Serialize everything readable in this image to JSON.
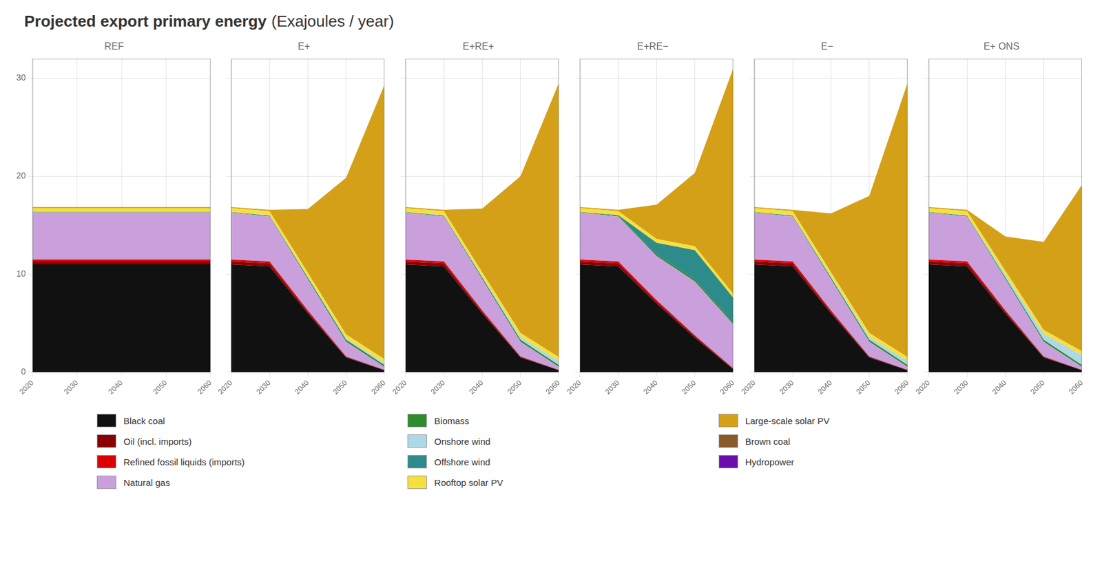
{
  "title": "Projected export primary energy",
  "subtitle": "(Exajoules / year)",
  "legend": "bottom",
  "chart_data": [
    {
      "type": "area",
      "title": "REF",
      "stacked": true,
      "grid": true,
      "x": [
        2020,
        2030,
        2040,
        2050,
        2060
      ],
      "xlim": [
        2020,
        2060
      ],
      "xticks": [
        2020,
        2030,
        2040,
        2050,
        2060
      ],
      "ylim": [
        0,
        32
      ],
      "yticks": [
        0,
        10,
        20,
        30
      ],
      "series": [
        {
          "name": "Black coal",
          "color": "#111111",
          "values": [
            11.0,
            11.0,
            11.0,
            11.0,
            11.0
          ]
        },
        {
          "name": "Oil (incl. imports)",
          "color": "#8B0000",
          "values": [
            0.3,
            0.3,
            0.3,
            0.3,
            0.3
          ]
        },
        {
          "name": "Refined fossil liquids (imports)",
          "color": "#DD0000",
          "values": [
            0.2,
            0.2,
            0.2,
            0.2,
            0.2
          ]
        },
        {
          "name": "Natural gas",
          "color": "#C9A0DC",
          "values": [
            4.8,
            4.8,
            4.8,
            4.8,
            4.8
          ]
        },
        {
          "name": "Biomass",
          "color": "#2E8B2E",
          "values": [
            0.05,
            0.05,
            0.05,
            0.05,
            0.05
          ]
        },
        {
          "name": "Onshore wind",
          "color": "#ADD8E6",
          "values": [
            0.0,
            0.0,
            0.0,
            0.0,
            0.0
          ]
        },
        {
          "name": "Offshore wind",
          "color": "#2E8B8B",
          "values": [
            0.0,
            0.0,
            0.0,
            0.0,
            0.0
          ]
        },
        {
          "name": "Rooftop solar PV",
          "color": "#F5E040",
          "values": [
            0.4,
            0.4,
            0.4,
            0.4,
            0.4
          ]
        },
        {
          "name": "Large-scale solar PV",
          "color": "#D4A017",
          "values": [
            0.1,
            0.1,
            0.1,
            0.1,
            0.1
          ]
        },
        {
          "name": "Brown coal",
          "color": "#8B5A2B",
          "values": [
            0.0,
            0.0,
            0.0,
            0.0,
            0.0
          ]
        },
        {
          "name": "Hydropower",
          "color": "#6A0DAD",
          "values": [
            0.0,
            0.0,
            0.0,
            0.0,
            0.0
          ]
        }
      ]
    },
    {
      "type": "area",
      "title": "E+",
      "stacked": true,
      "grid": true,
      "tick_labels": "x",
      "x": [
        2020,
        2030,
        2040,
        2050,
        2060
      ],
      "xlim": [
        2020,
        2060
      ],
      "xticks": [
        2020,
        2030,
        2040,
        2050,
        2060
      ],
      "ylim": [
        0,
        32
      ],
      "yticks": [
        0,
        10,
        20,
        30
      ],
      "series": [
        {
          "name": "Black coal",
          "color": "#111111",
          "values": [
            11.0,
            10.8,
            6.0,
            1.5,
            0.2
          ]
        },
        {
          "name": "Oil (incl. imports)",
          "color": "#8B0000",
          "values": [
            0.3,
            0.3,
            0.15,
            0.05,
            0.02
          ]
        },
        {
          "name": "Refined fossil liquids (imports)",
          "color": "#DD0000",
          "values": [
            0.2,
            0.2,
            0.15,
            0.05,
            0.01
          ]
        },
        {
          "name": "Natural gas",
          "color": "#C9A0DC",
          "values": [
            4.8,
            4.6,
            3.2,
            1.5,
            0.3
          ]
        },
        {
          "name": "Biomass",
          "color": "#2E8B2E",
          "values": [
            0.05,
            0.08,
            0.15,
            0.2,
            0.2
          ]
        },
        {
          "name": "Onshore wind",
          "color": "#ADD8E6",
          "values": [
            0.0,
            0.05,
            0.1,
            0.15,
            0.2
          ]
        },
        {
          "name": "Offshore wind",
          "color": "#2E8B8B",
          "values": [
            0.0,
            0.0,
            0.0,
            0.0,
            0.0
          ]
        },
        {
          "name": "Rooftop solar PV",
          "color": "#F5E040",
          "values": [
            0.4,
            0.4,
            0.4,
            0.4,
            0.4
          ]
        },
        {
          "name": "Large-scale solar PV",
          "color": "#D4A017",
          "values": [
            0.1,
            0.15,
            6.5,
            16.0,
            28.0
          ]
        },
        {
          "name": "Brown coal",
          "color": "#8B5A2B",
          "values": [
            0.0,
            0.0,
            0.0,
            0.0,
            0.0
          ]
        },
        {
          "name": "Hydropower",
          "color": "#6A0DAD",
          "values": [
            0.0,
            0.0,
            0.0,
            0.0,
            0.0
          ]
        }
      ]
    },
    {
      "type": "area",
      "title": "E+RE+",
      "stacked": true,
      "grid": true,
      "tick_labels": "x",
      "x": [
        2020,
        2030,
        2040,
        2050,
        2060
      ],
      "xlim": [
        2020,
        2060
      ],
      "xticks": [
        2020,
        2030,
        2040,
        2050,
        2060
      ],
      "ylim": [
        0,
        32
      ],
      "yticks": [
        0,
        10,
        20,
        30
      ],
      "series": [
        {
          "name": "Black coal",
          "color": "#111111",
          "values": [
            11.0,
            10.8,
            6.0,
            1.5,
            0.2
          ]
        },
        {
          "name": "Oil (incl. imports)",
          "color": "#8B0000",
          "values": [
            0.3,
            0.3,
            0.15,
            0.05,
            0.02
          ]
        },
        {
          "name": "Refined fossil liquids (imports)",
          "color": "#DD0000",
          "values": [
            0.2,
            0.2,
            0.15,
            0.05,
            0.01
          ]
        },
        {
          "name": "Natural gas",
          "color": "#C9A0DC",
          "values": [
            4.8,
            4.6,
            3.2,
            1.5,
            0.3
          ]
        },
        {
          "name": "Biomass",
          "color": "#2E8B2E",
          "values": [
            0.05,
            0.08,
            0.15,
            0.2,
            0.2
          ]
        },
        {
          "name": "Onshore wind",
          "color": "#ADD8E6",
          "values": [
            0.0,
            0.05,
            0.15,
            0.3,
            0.4
          ]
        },
        {
          "name": "Offshore wind",
          "color": "#2E8B8B",
          "values": [
            0.0,
            0.0,
            0.0,
            0.0,
            0.0
          ]
        },
        {
          "name": "Rooftop solar PV",
          "color": "#F5E040",
          "values": [
            0.4,
            0.4,
            0.4,
            0.4,
            0.4
          ]
        },
        {
          "name": "Large-scale solar PV",
          "color": "#D4A017",
          "values": [
            0.1,
            0.15,
            6.5,
            16.0,
            28.0
          ]
        },
        {
          "name": "Brown coal",
          "color": "#8B5A2B",
          "values": [
            0.0,
            0.0,
            0.0,
            0.0,
            0.0
          ]
        },
        {
          "name": "Hydropower",
          "color": "#6A0DAD",
          "values": [
            0.0,
            0.0,
            0.0,
            0.0,
            0.0
          ]
        }
      ]
    },
    {
      "type": "area",
      "title": "E+RE−",
      "stacked": true,
      "grid": true,
      "tick_labels": "x",
      "x": [
        2020,
        2030,
        2040,
        2050,
        2060
      ],
      "xlim": [
        2020,
        2060
      ],
      "xticks": [
        2020,
        2030,
        2040,
        2050,
        2060
      ],
      "ylim": [
        0,
        32
      ],
      "yticks": [
        0,
        10,
        20,
        30
      ],
      "series": [
        {
          "name": "Black coal",
          "color": "#111111",
          "values": [
            11.0,
            10.8,
            7.0,
            3.5,
            0.3
          ]
        },
        {
          "name": "Oil (incl. imports)",
          "color": "#8B0000",
          "values": [
            0.3,
            0.3,
            0.2,
            0.15,
            0.05
          ]
        },
        {
          "name": "Refined fossil liquids (imports)",
          "color": "#DD0000",
          "values": [
            0.2,
            0.2,
            0.15,
            0.1,
            0.05
          ]
        },
        {
          "name": "Natural gas",
          "color": "#C9A0DC",
          "values": [
            4.8,
            4.6,
            4.5,
            5.5,
            4.5
          ]
        },
        {
          "name": "Biomass",
          "color": "#2E8B2E",
          "values": [
            0.05,
            0.08,
            0.15,
            0.2,
            0.2
          ]
        },
        {
          "name": "Onshore wind",
          "color": "#ADD8E6",
          "values": [
            0.0,
            0.0,
            0.0,
            0.0,
            0.0
          ]
        },
        {
          "name": "Offshore wind",
          "color": "#2E8B8B",
          "values": [
            0.0,
            0.05,
            1.2,
            3.0,
            2.5
          ]
        },
        {
          "name": "Rooftop solar PV",
          "color": "#F5E040",
          "values": [
            0.4,
            0.4,
            0.4,
            0.4,
            0.4
          ]
        },
        {
          "name": "Large-scale solar PV",
          "color": "#D4A017",
          "values": [
            0.1,
            0.15,
            3.5,
            7.5,
            23.0
          ]
        },
        {
          "name": "Brown coal",
          "color": "#8B5A2B",
          "values": [
            0.0,
            0.0,
            0.0,
            0.0,
            0.0
          ]
        },
        {
          "name": "Hydropower",
          "color": "#6A0DAD",
          "values": [
            0.0,
            0.0,
            0.0,
            0.0,
            0.0
          ]
        }
      ]
    },
    {
      "type": "area",
      "title": "E−",
      "stacked": true,
      "grid": true,
      "tick_labels": "x",
      "x": [
        2020,
        2030,
        2040,
        2050,
        2060
      ],
      "xlim": [
        2020,
        2060
      ],
      "xticks": [
        2020,
        2030,
        2040,
        2050,
        2060
      ],
      "ylim": [
        0,
        32
      ],
      "yticks": [
        0,
        10,
        20,
        30
      ],
      "series": [
        {
          "name": "Black coal",
          "color": "#111111",
          "values": [
            11.0,
            10.8,
            6.0,
            1.5,
            0.2
          ]
        },
        {
          "name": "Oil (incl. imports)",
          "color": "#8B0000",
          "values": [
            0.3,
            0.3,
            0.15,
            0.05,
            0.02
          ]
        },
        {
          "name": "Refined fossil liquids (imports)",
          "color": "#DD0000",
          "values": [
            0.2,
            0.2,
            0.15,
            0.05,
            0.01
          ]
        },
        {
          "name": "Natural gas",
          "color": "#C9A0DC",
          "values": [
            4.8,
            4.6,
            3.2,
            1.5,
            0.3
          ]
        },
        {
          "name": "Biomass",
          "color": "#2E8B2E",
          "values": [
            0.05,
            0.08,
            0.15,
            0.2,
            0.2
          ]
        },
        {
          "name": "Onshore wind",
          "color": "#ADD8E6",
          "values": [
            0.0,
            0.05,
            0.15,
            0.3,
            0.4
          ]
        },
        {
          "name": "Offshore wind",
          "color": "#2E8B8B",
          "values": [
            0.0,
            0.0,
            0.0,
            0.0,
            0.0
          ]
        },
        {
          "name": "Rooftop solar PV",
          "color": "#F5E040",
          "values": [
            0.4,
            0.4,
            0.4,
            0.4,
            0.4
          ]
        },
        {
          "name": "Large-scale solar PV",
          "color": "#D4A017",
          "values": [
            0.1,
            0.15,
            6.0,
            14.0,
            28.0
          ]
        },
        {
          "name": "Brown coal",
          "color": "#8B5A2B",
          "values": [
            0.0,
            0.0,
            0.0,
            0.0,
            0.0
          ]
        },
        {
          "name": "Hydropower",
          "color": "#6A0DAD",
          "values": [
            0.0,
            0.0,
            0.0,
            0.0,
            0.0
          ]
        }
      ]
    },
    {
      "type": "area",
      "title": "E+ ONS",
      "stacked": true,
      "grid": true,
      "tick_labels": "x",
      "x": [
        2020,
        2030,
        2040,
        2050,
        2060
      ],
      "xlim": [
        2020,
        2060
      ],
      "xticks": [
        2020,
        2030,
        2040,
        2050,
        2060
      ],
      "ylim": [
        0,
        32
      ],
      "yticks": [
        0,
        10,
        20,
        30
      ],
      "series": [
        {
          "name": "Black coal",
          "color": "#111111",
          "values": [
            11.0,
            10.8,
            6.0,
            1.5,
            0.2
          ]
        },
        {
          "name": "Oil (incl. imports)",
          "color": "#8B0000",
          "values": [
            0.3,
            0.3,
            0.15,
            0.05,
            0.02
          ]
        },
        {
          "name": "Refined fossil liquids (imports)",
          "color": "#DD0000",
          "values": [
            0.2,
            0.2,
            0.15,
            0.05,
            0.01
          ]
        },
        {
          "name": "Natural gas",
          "color": "#C9A0DC",
          "values": [
            4.8,
            4.6,
            3.2,
            1.5,
            0.3
          ]
        },
        {
          "name": "Biomass",
          "color": "#2E8B2E",
          "values": [
            0.05,
            0.08,
            0.15,
            0.2,
            0.2
          ]
        },
        {
          "name": "Onshore wind",
          "color": "#ADD8E6",
          "values": [
            0.0,
            0.05,
            0.3,
            0.6,
            1.0
          ]
        },
        {
          "name": "Offshore wind",
          "color": "#2E8B8B",
          "values": [
            0.0,
            0.0,
            0.0,
            0.0,
            0.0
          ]
        },
        {
          "name": "Rooftop solar PV",
          "color": "#F5E040",
          "values": [
            0.4,
            0.4,
            0.4,
            0.4,
            0.4
          ]
        },
        {
          "name": "Large-scale solar PV",
          "color": "#D4A017",
          "values": [
            0.1,
            0.15,
            3.5,
            9.0,
            17.0
          ]
        },
        {
          "name": "Brown coal",
          "color": "#8B5A2B",
          "values": [
            0.0,
            0.0,
            0.0,
            0.0,
            0.0
          ]
        },
        {
          "name": "Hydropower",
          "color": "#6A0DAD",
          "values": [
            0.0,
            0.0,
            0.0,
            0.0,
            0.0
          ]
        }
      ]
    }
  ]
}
